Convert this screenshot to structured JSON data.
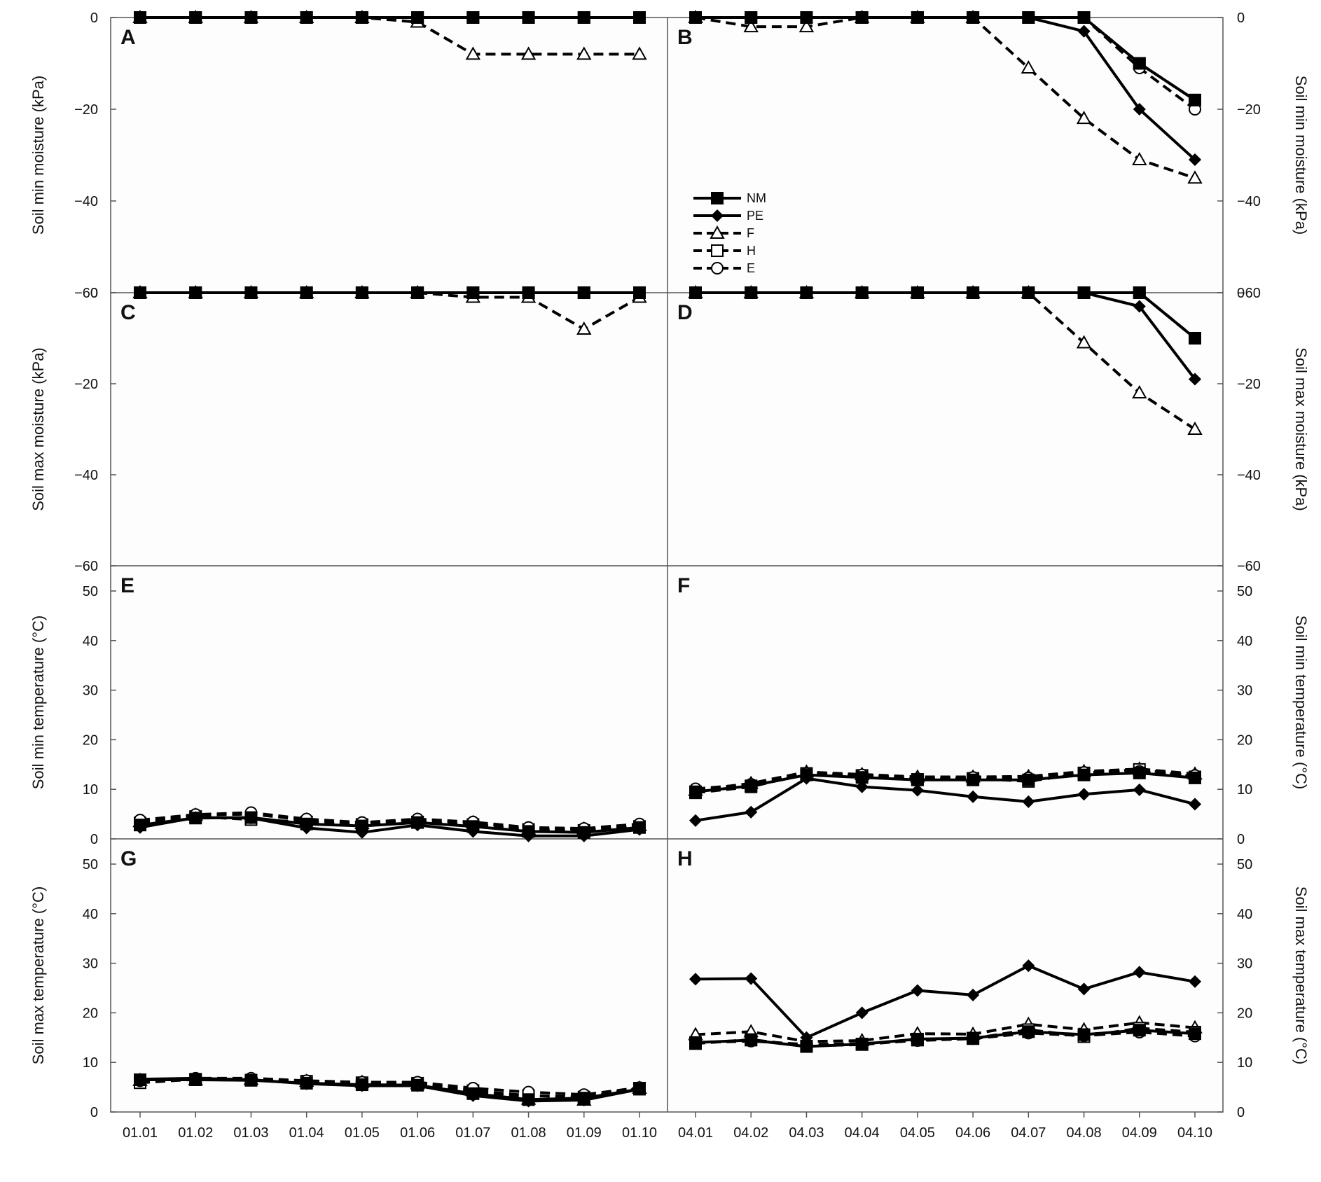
{
  "figure": {
    "x_labels_left": [
      "01.01",
      "01.02",
      "01.03",
      "01.04",
      "01.05",
      "01.06",
      "01.07",
      "01.08",
      "01.09",
      "01.10"
    ],
    "x_labels_right": [
      "04.01",
      "04.02",
      "04.03",
      "04.04",
      "04.05",
      "04.06",
      "04.07",
      "04.08",
      "04.09",
      "04.10"
    ],
    "legend": [
      {
        "name": "NM",
        "style": "solid",
        "marker": "square-filled"
      },
      {
        "name": "PE",
        "style": "solid",
        "marker": "diamond-filled"
      },
      {
        "name": "F",
        "style": "dashed",
        "marker": "triangle-open"
      },
      {
        "name": "H",
        "style": "dashed",
        "marker": "square-open"
      },
      {
        "name": "E",
        "style": "dashed",
        "marker": "circle-open"
      }
    ],
    "colors": {
      "line": "#000000",
      "axis": "#555555",
      "background": "#fdfdfd"
    }
  },
  "chart_data": [
    {
      "panel": "A",
      "type": "line",
      "side": "left",
      "ylabel": "Soil min moisture (kPa)",
      "ylim": [
        -60,
        0
      ],
      "yticks": [
        0,
        -20,
        -40,
        -60
      ],
      "categories": [
        "01.01",
        "01.02",
        "01.03",
        "01.04",
        "01.05",
        "01.06",
        "01.07",
        "01.08",
        "01.09",
        "01.10"
      ],
      "series": [
        {
          "name": "NM",
          "values": [
            0,
            0,
            0,
            0,
            0,
            0,
            0,
            0,
            0,
            0
          ]
        },
        {
          "name": "PE",
          "values": [
            0,
            0,
            0,
            0,
            0,
            0,
            0,
            0,
            0,
            0
          ]
        },
        {
          "name": "F",
          "values": [
            0,
            0,
            0,
            0,
            0,
            -1,
            -8,
            -8,
            -8,
            -8
          ]
        },
        {
          "name": "H",
          "values": [
            0,
            0,
            0,
            0,
            0,
            0,
            0,
            0,
            0,
            0
          ]
        },
        {
          "name": "E",
          "values": [
            0,
            0,
            0,
            0,
            0,
            0,
            0,
            0,
            0,
            0
          ]
        }
      ]
    },
    {
      "panel": "B",
      "type": "line",
      "side": "right",
      "ylabel": "Soil min moisture (kPa)",
      "ylim": [
        -60,
        0
      ],
      "yticks": [
        0,
        -20,
        -40,
        -60
      ],
      "categories": [
        "04.01",
        "04.02",
        "04.03",
        "04.04",
        "04.05",
        "04.06",
        "04.07",
        "04.08",
        "04.09",
        "04.10"
      ],
      "series": [
        {
          "name": "NM",
          "values": [
            0,
            0,
            0,
            0,
            0,
            0,
            0,
            0,
            -10,
            -18
          ]
        },
        {
          "name": "PE",
          "values": [
            0,
            0,
            0,
            0,
            0,
            0,
            0,
            -3,
            -20,
            -31
          ]
        },
        {
          "name": "F",
          "values": [
            0,
            -2,
            -2,
            0,
            0,
            0,
            -11,
            -22,
            -31,
            -35
          ]
        },
        {
          "name": "H",
          "values": [
            0,
            0,
            0,
            0,
            0,
            0,
            0,
            0,
            -10,
            -18
          ]
        },
        {
          "name": "E",
          "values": [
            0,
            0,
            0,
            0,
            0,
            0,
            0,
            0,
            -11,
            -20
          ]
        }
      ]
    },
    {
      "panel": "C",
      "type": "line",
      "side": "left",
      "ylabel": "Soil max moisture (kPa)",
      "ylim": [
        -60,
        0
      ],
      "yticks": [
        0,
        -20,
        -40,
        -60
      ],
      "categories": [
        "01.01",
        "01.02",
        "01.03",
        "01.04",
        "01.05",
        "01.06",
        "01.07",
        "01.08",
        "01.09",
        "01.10"
      ],
      "series": [
        {
          "name": "NM",
          "values": [
            0,
            0,
            0,
            0,
            0,
            0,
            0,
            0,
            0,
            0
          ]
        },
        {
          "name": "PE",
          "values": [
            0,
            0,
            0,
            0,
            0,
            0,
            0,
            0,
            0,
            0
          ]
        },
        {
          "name": "F",
          "values": [
            0,
            0,
            0,
            0,
            0,
            0,
            -1,
            -1,
            -8,
            -1
          ]
        },
        {
          "name": "H",
          "values": [
            0,
            0,
            0,
            0,
            0,
            0,
            0,
            0,
            0,
            0
          ]
        },
        {
          "name": "E",
          "values": [
            0,
            0,
            0,
            0,
            0,
            0,
            0,
            0,
            0,
            0
          ]
        }
      ]
    },
    {
      "panel": "D",
      "type": "line",
      "side": "right",
      "ylabel": "Soil max moisture (kPa)",
      "ylim": [
        -60,
        0
      ],
      "yticks": [
        0,
        -20,
        -40,
        -60
      ],
      "categories": [
        "04.01",
        "04.02",
        "04.03",
        "04.04",
        "04.05",
        "04.06",
        "04.07",
        "04.08",
        "04.09",
        "04.10"
      ],
      "series": [
        {
          "name": "NM",
          "values": [
            0,
            0,
            0,
            0,
            0,
            0,
            0,
            0,
            0,
            -10
          ]
        },
        {
          "name": "PE",
          "values": [
            0,
            0,
            0,
            0,
            0,
            0,
            0,
            0,
            -3,
            -19
          ]
        },
        {
          "name": "F",
          "values": [
            0,
            0,
            0,
            0,
            0,
            0,
            0,
            -11,
            -22,
            -30
          ]
        },
        {
          "name": "H",
          "values": [
            0,
            0,
            0,
            0,
            0,
            0,
            0,
            0,
            0,
            -10
          ]
        },
        {
          "name": "E",
          "values": [
            0,
            0,
            0,
            0,
            0,
            0,
            0,
            0,
            0,
            -10
          ]
        }
      ]
    },
    {
      "panel": "E",
      "type": "line",
      "side": "left",
      "ylabel": "Soil min temperature (°C)",
      "ylim": [
        0,
        55
      ],
      "yticks": [
        0,
        10,
        20,
        30,
        40,
        50
      ],
      "categories": [
        "01.01",
        "01.02",
        "01.03",
        "01.04",
        "01.05",
        "01.06",
        "01.07",
        "01.08",
        "01.09",
        "01.10"
      ],
      "series": [
        {
          "name": "NM",
          "values": [
            2.8,
            4.2,
            4.3,
            3.0,
            2.6,
            3.3,
            2.5,
            1.5,
            1.3,
            2.3
          ]
        },
        {
          "name": "PE",
          "values": [
            2.3,
            4.3,
            4.2,
            2.2,
            1.3,
            2.8,
            1.5,
            0.6,
            0.6,
            1.9
          ]
        },
        {
          "name": "F",
          "values": [
            3.5,
            4.8,
            5.0,
            3.8,
            3.1,
            3.8,
            3.3,
            2.0,
            2.0,
            2.7
          ]
        },
        {
          "name": "H",
          "values": [
            3.2,
            4.5,
            3.9,
            3.4,
            2.9,
            3.4,
            2.9,
            1.9,
            1.7,
            2.5
          ]
        },
        {
          "name": "E",
          "values": [
            3.8,
            4.9,
            5.3,
            4.0,
            3.3,
            4.0,
            3.4,
            2.3,
            2.1,
            3.0
          ]
        }
      ]
    },
    {
      "panel": "F",
      "type": "line",
      "side": "right",
      "ylabel": "Soil min temperature (°C)",
      "ylim": [
        0,
        55
      ],
      "yticks": [
        0,
        10,
        20,
        30,
        40,
        50
      ],
      "categories": [
        "04.01",
        "04.02",
        "04.03",
        "04.04",
        "04.05",
        "04.06",
        "04.07",
        "04.08",
        "04.09",
        "04.10"
      ],
      "series": [
        {
          "name": "NM",
          "values": [
            9.5,
            10.7,
            12.9,
            12.4,
            11.9,
            11.9,
            11.9,
            12.9,
            13.3,
            12.3
          ]
        },
        {
          "name": "PE",
          "values": [
            3.7,
            5.4,
            12.2,
            10.5,
            9.8,
            8.5,
            7.5,
            9.0,
            9.9,
            7.0
          ]
        },
        {
          "name": "F",
          "values": [
            9.8,
            11.2,
            13.5,
            13.0,
            12.5,
            12.5,
            12.6,
            13.6,
            14.1,
            13.1
          ]
        },
        {
          "name": "H",
          "values": [
            9.3,
            10.5,
            13.2,
            12.8,
            12.0,
            12.2,
            11.6,
            13.3,
            14.0,
            12.5
          ]
        },
        {
          "name": "E",
          "values": [
            10.1,
            11.0,
            13.2,
            12.9,
            12.1,
            12.4,
            12.3,
            13.4,
            13.6,
            12.8
          ]
        }
      ]
    },
    {
      "panel": "G",
      "type": "line",
      "side": "left",
      "ylabel": "Soil max temperature (°C)",
      "ylim": [
        0,
        55
      ],
      "yticks": [
        0,
        10,
        20,
        30,
        40,
        50
      ],
      "categories": [
        "01.01",
        "01.02",
        "01.03",
        "01.04",
        "01.05",
        "01.06",
        "01.07",
        "01.08",
        "01.09",
        "01.10"
      ],
      "series": [
        {
          "name": "NM",
          "values": [
            6.5,
            6.5,
            6.4,
            5.8,
            5.5,
            5.4,
            3.7,
            2.5,
            2.8,
            4.6
          ]
        },
        {
          "name": "PE",
          "values": [
            6.6,
            6.8,
            6.5,
            5.7,
            5.3,
            5.3,
            3.3,
            2.2,
            2.4,
            4.6
          ]
        },
        {
          "name": "F",
          "values": [
            6.4,
            6.5,
            6.6,
            6.2,
            6.0,
            5.7,
            4.3,
            2.6,
            2.4,
            4.8
          ]
        },
        {
          "name": "H",
          "values": [
            5.9,
            6.6,
            6.4,
            6.2,
            5.9,
            5.8,
            4.3,
            3.3,
            3.0,
            4.8
          ]
        },
        {
          "name": "E",
          "values": [
            6.3,
            6.8,
            6.8,
            6.3,
            6.0,
            6.0,
            4.8,
            4.0,
            3.5,
            4.9
          ]
        }
      ]
    },
    {
      "panel": "H",
      "type": "line",
      "side": "right",
      "ylabel": "Soil max temperature (°C)",
      "ylim": [
        0,
        55
      ],
      "yticks": [
        0,
        10,
        20,
        30,
        40,
        50
      ],
      "categories": [
        "04.01",
        "04.02",
        "04.03",
        "04.04",
        "04.05",
        "04.06",
        "04.07",
        "04.08",
        "04.09",
        "04.10"
      ],
      "series": [
        {
          "name": "NM",
          "values": [
            14.0,
            14.5,
            13.2,
            13.7,
            14.7,
            14.9,
            16.2,
            15.6,
            16.5,
            15.8
          ]
        },
        {
          "name": "PE",
          "values": [
            26.8,
            26.9,
            15.0,
            20.0,
            24.5,
            23.6,
            29.5,
            24.8,
            28.2,
            26.3
          ]
        },
        {
          "name": "F",
          "values": [
            15.6,
            16.2,
            14.2,
            14.4,
            15.8,
            15.7,
            17.7,
            16.6,
            18.0,
            17.0
          ]
        },
        {
          "name": "H",
          "values": [
            13.8,
            14.6,
            13.3,
            13.6,
            14.5,
            14.8,
            16.6,
            15.2,
            16.9,
            16.1
          ]
        },
        {
          "name": "E",
          "values": [
            14.0,
            14.3,
            13.6,
            13.8,
            14.4,
            14.8,
            15.9,
            15.4,
            16.1,
            15.3
          ]
        }
      ]
    }
  ]
}
